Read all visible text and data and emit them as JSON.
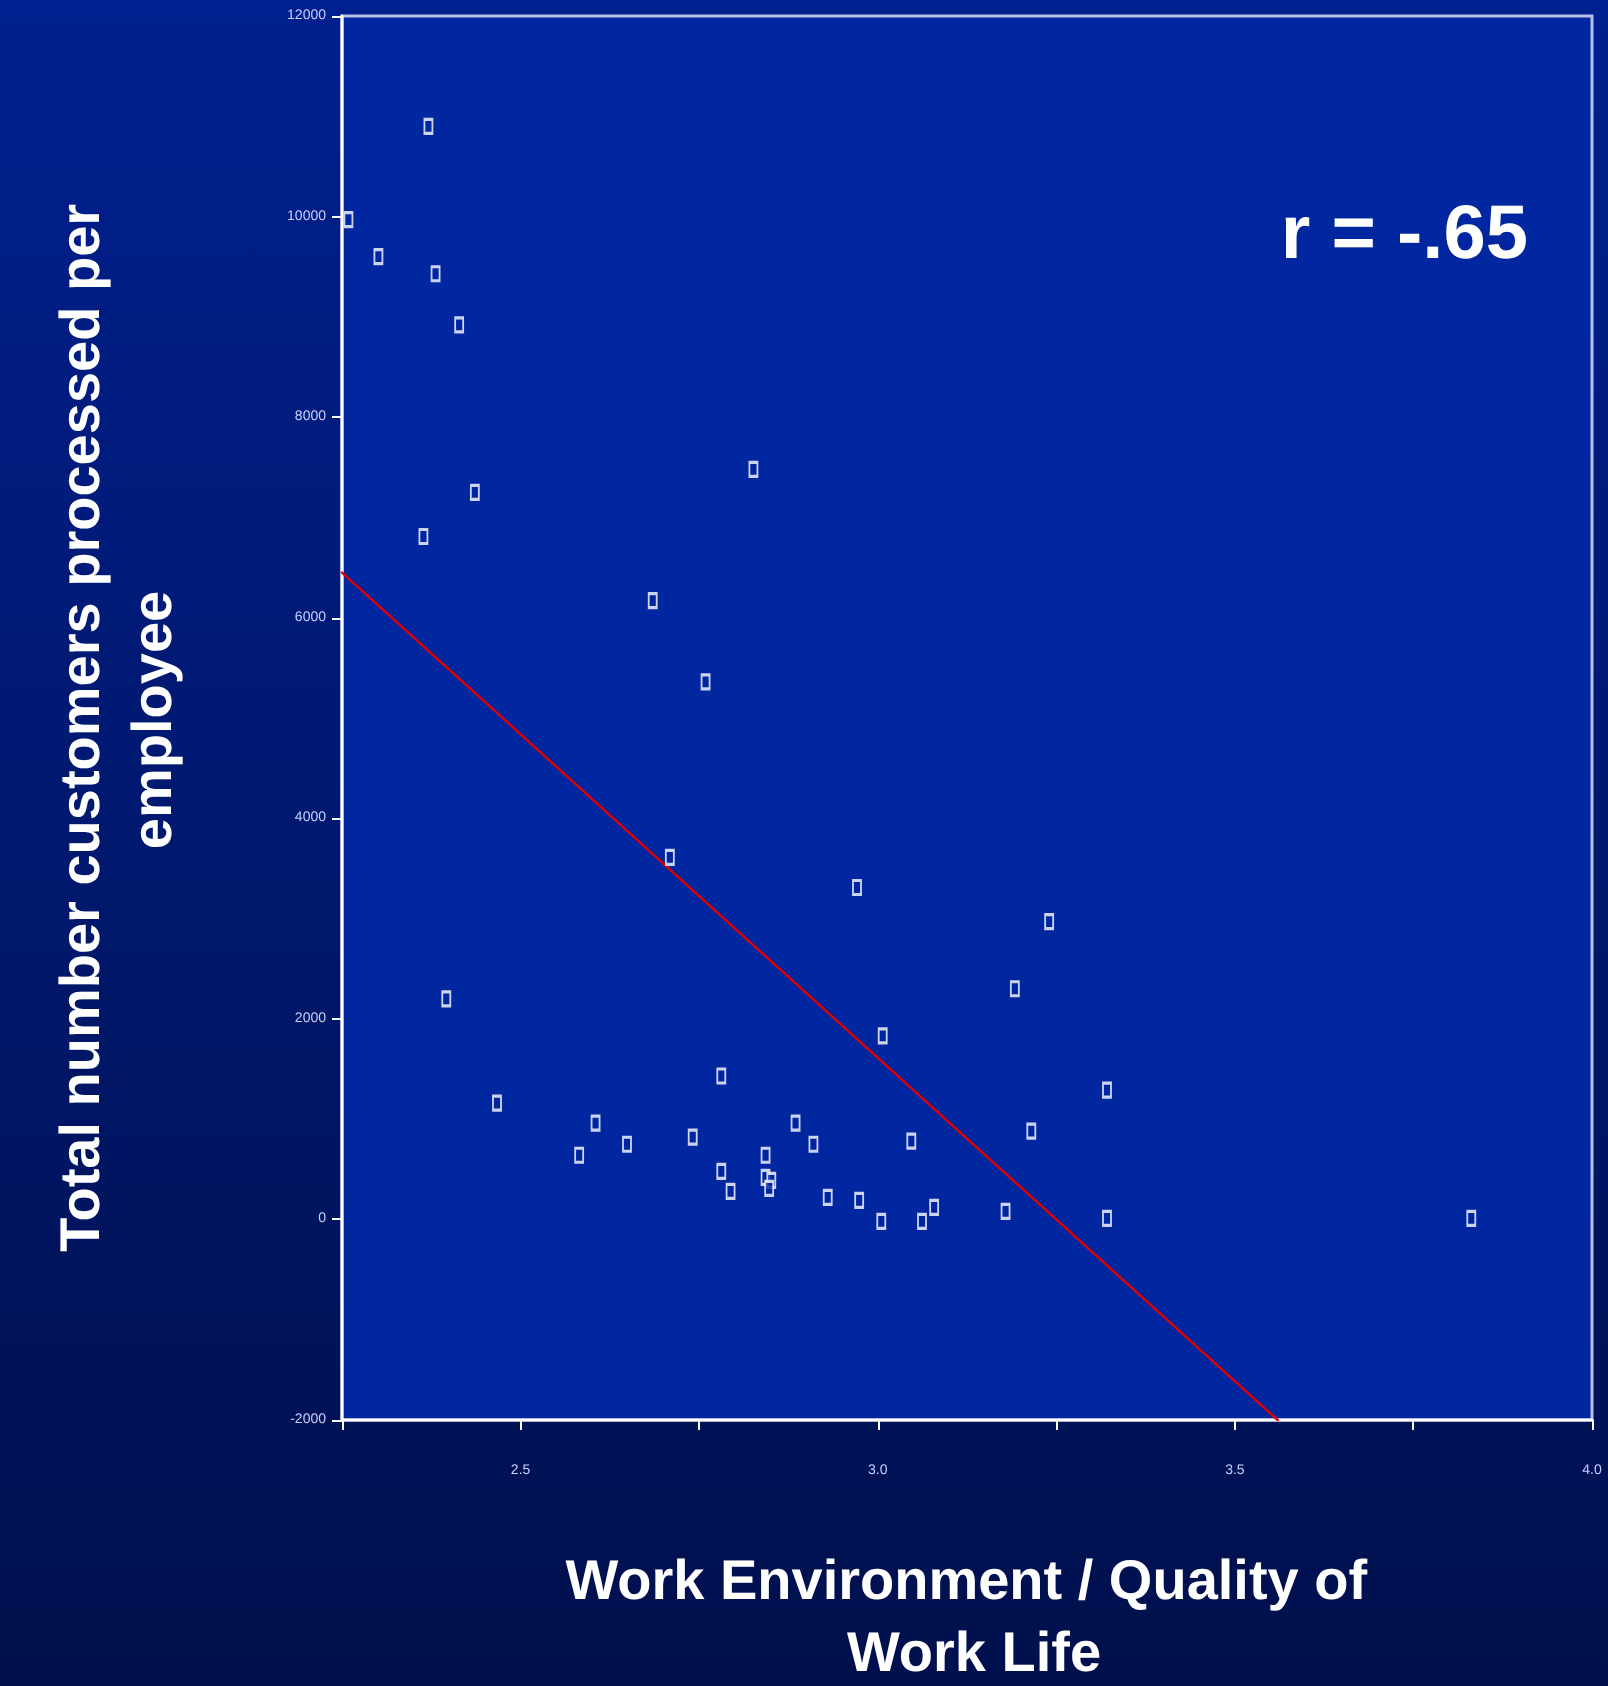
{
  "chart_data": {
    "type": "scatter",
    "xlabel": "Work Environment / Quality of Work Life",
    "ylabel": "Total number customers processed per employee",
    "annotations": [
      "r = -.65"
    ],
    "xlim": [
      2.25,
      4.0
    ],
    "ylim": [
      -2000,
      12000
    ],
    "xticks": [
      {
        "value": 2.25,
        "label": null
      },
      2.5,
      {
        "value": 2.75,
        "label": null
      },
      {
        "value": 3.0,
        "label": "3.0"
      },
      {
        "value": 3.25,
        "label": null
      },
      3.5,
      {
        "value": 3.75,
        "label": null
      },
      {
        "value": 4.0,
        "label": "4.0"
      }
    ],
    "yticks": [
      -2000,
      0,
      2000,
      4000,
      6000,
      8000,
      10000,
      12000
    ],
    "grid": false,
    "marker": "square",
    "series": [
      {
        "color": "#ffffff",
        "x": [
          2.371,
          2.259,
          2.301,
          2.381,
          2.414,
          2.826,
          2.436,
          2.364,
          2.685,
          2.759,
          2.709,
          2.971,
          2.396,
          3.007,
          2.781,
          2.467,
          2.605,
          2.741,
          2.885,
          3.047,
          2.582,
          2.649,
          2.843,
          2.91,
          2.781,
          2.843,
          2.851,
          2.848,
          2.794,
          2.93,
          2.974,
          3.079,
          3.005,
          3.062,
          3.24,
          3.192,
          3.321,
          3.217,
          3.215,
          3.179,
          3.321,
          3.831
        ],
        "values": [
          10900,
          9970,
          9600,
          9430,
          8920,
          7480,
          7250,
          6810,
          6170,
          5360,
          3610,
          3310,
          2200,
          1830,
          1430,
          1160,
          960,
          820,
          960,
          780,
          640,
          750,
          640,
          750,
          480,
          420,
          390,
          310,
          280,
          220,
          190,
          120,
          -20,
          -20,
          2970,
          2300,
          1290,
          null,
          880,
          80,
          10,
          10
        ]
      },
      {
        "type": "line",
        "color": "#e00000",
        "x": [
          2.25,
          3.56
        ],
        "values": [
          6450,
          -2000
        ],
        "marker": "none",
        "line_style": "solid"
      }
    ]
  }
}
